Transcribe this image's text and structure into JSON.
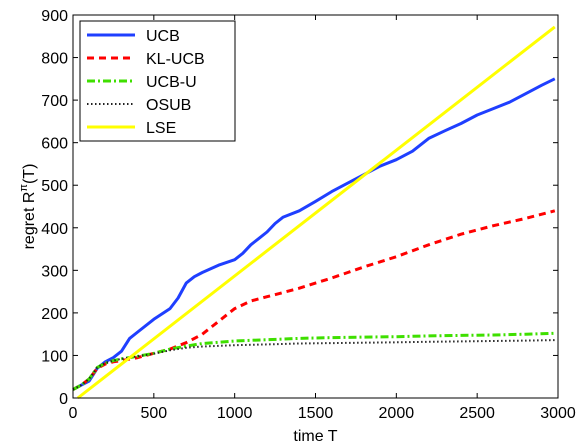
{
  "chart_data": {
    "type": "line",
    "title": "",
    "xlabel": "time T",
    "ylabel_main": "regret R",
    "ylabel_sup": "π",
    "ylabel_tail": "(T)",
    "xlim": [
      0,
      3000
    ],
    "ylim": [
      0,
      900
    ],
    "xticks": [
      0,
      500,
      1000,
      1500,
      2000,
      2500,
      3000
    ],
    "yticks": [
      0,
      100,
      200,
      300,
      400,
      500,
      600,
      700,
      800,
      900
    ],
    "xtick_labels": [
      "0",
      "500",
      "1000",
      "1500",
      "2000",
      "2500",
      "3000"
    ],
    "ytick_labels": [
      "0",
      "100",
      "200",
      "300",
      "400",
      "500",
      "600",
      "700",
      "800",
      "900"
    ],
    "grid": false,
    "legend_position": "top-left",
    "series": [
      {
        "name": "UCB",
        "color": "#1f3fff",
        "style": "solid",
        "x": [
          0,
          50,
          100,
          150,
          200,
          250,
          300,
          350,
          400,
          500,
          600,
          650,
          700,
          750,
          800,
          900,
          1000,
          1050,
          1100,
          1150,
          1200,
          1250,
          1300,
          1400,
          1500,
          1600,
          1700,
          1800,
          1900,
          2000,
          2100,
          2200,
          2300,
          2400,
          2500,
          2600,
          2700,
          2800,
          2900,
          2980
        ],
        "y": [
          20,
          30,
          40,
          70,
          85,
          95,
          110,
          140,
          155,
          185,
          210,
          235,
          270,
          285,
          295,
          312,
          325,
          340,
          360,
          375,
          390,
          410,
          425,
          440,
          462,
          485,
          505,
          525,
          545,
          560,
          580,
          610,
          628,
          645,
          665,
          680,
          695,
          715,
          735,
          750
        ]
      },
      {
        "name": "KL-UCB",
        "color": "#ff0000",
        "style": "dashed",
        "x": [
          0,
          50,
          100,
          150,
          200,
          250,
          300,
          400,
          500,
          600,
          700,
          800,
          900,
          1000,
          1100,
          1200,
          1300,
          1400,
          1500,
          1600,
          1700,
          1800,
          1900,
          2000,
          2200,
          2400,
          2600,
          2800,
          2980
        ],
        "y": [
          20,
          30,
          45,
          70,
          80,
          85,
          88,
          95,
          105,
          115,
          130,
          150,
          180,
          210,
          228,
          238,
          248,
          258,
          270,
          282,
          295,
          308,
          320,
          332,
          360,
          385,
          405,
          422,
          440
        ]
      },
      {
        "name": "UCB-U",
        "color": "#3fdf00",
        "style": "dashdot",
        "x": [
          0,
          50,
          100,
          150,
          200,
          250,
          300,
          400,
          500,
          600,
          700,
          800,
          900,
          1000,
          1200,
          1400,
          1600,
          1800,
          2000,
          2200,
          2400,
          2600,
          2800,
          2980
        ],
        "y": [
          20,
          30,
          45,
          72,
          82,
          88,
          92,
          98,
          105,
          115,
          122,
          128,
          131,
          134,
          137,
          140,
          142,
          143,
          144,
          146,
          147,
          148,
          150,
          152
        ]
      },
      {
        "name": "OSUB",
        "color": "#222222",
        "style": "dotted",
        "x": [
          0,
          50,
          100,
          150,
          200,
          250,
          300,
          400,
          500,
          600,
          700,
          800,
          1000,
          1200,
          1400,
          1600,
          1800,
          2000,
          2200,
          2400,
          2600,
          2800,
          2980
        ],
        "y": [
          20,
          30,
          45,
          72,
          82,
          88,
          92,
          98,
          104,
          112,
          118,
          121,
          124,
          126,
          128,
          129,
          130,
          131,
          132,
          133,
          134,
          135,
          136
        ]
      },
      {
        "name": "LSE",
        "color": "#ffff00",
        "style": "solid",
        "x": [
          30,
          2980
        ],
        "y": [
          0,
          872
        ]
      }
    ]
  }
}
